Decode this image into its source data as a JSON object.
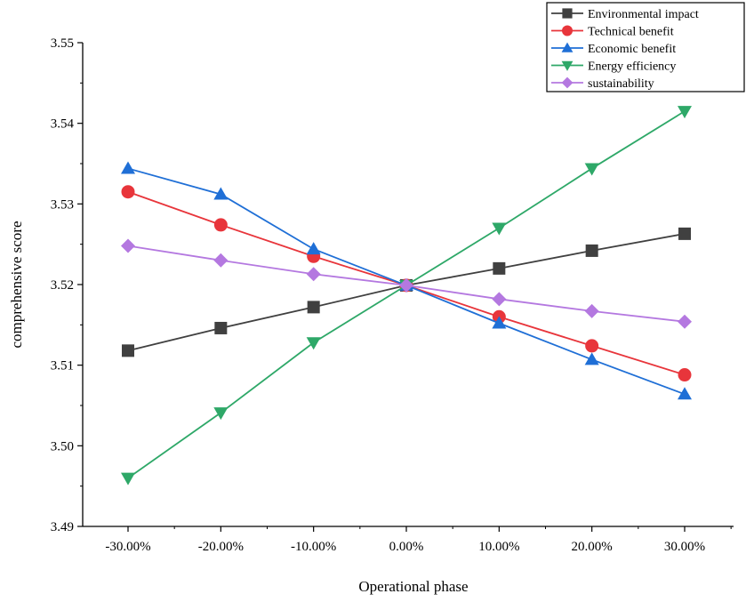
{
  "chart_data": {
    "type": "line",
    "xlabel": "Operational phase",
    "ylabel": "comprehensive score",
    "categories": [
      "-30.00%",
      "-20.00%",
      "-10.00%",
      "0.00%",
      "10.00%",
      "20.00%",
      "30.00%"
    ],
    "yticks": [
      "3.49",
      "3.50",
      "3.51",
      "3.52",
      "3.53",
      "3.54",
      "3.55"
    ],
    "ylim": [
      3.49,
      3.55
    ],
    "grid": false,
    "legend_position": "top-right",
    "series": [
      {
        "name": "Environmental impact",
        "color": "#404040",
        "marker": "square",
        "values": [
          3.5118,
          3.5146,
          3.5172,
          3.5199,
          3.522,
          3.5242,
          3.5263
        ]
      },
      {
        "name": "Technical benefit",
        "color": "#e8353b",
        "marker": "circle",
        "values": [
          3.5315,
          3.5274,
          3.5235,
          3.5199,
          3.516,
          3.5124,
          3.5088
        ]
      },
      {
        "name": "Economic benefit",
        "color": "#1f6fd6",
        "marker": "triangle-up",
        "values": [
          3.5344,
          3.5312,
          3.5244,
          3.5199,
          3.5152,
          3.5107,
          3.5064
        ]
      },
      {
        "name": "Energy efficiency",
        "color": "#2ea868",
        "marker": "triangle-down",
        "values": [
          3.496,
          3.5041,
          3.5128,
          3.5199,
          3.527,
          3.5344,
          3.5415
        ]
      },
      {
        "name": "sustainability",
        "color": "#b478e0",
        "marker": "diamond",
        "values": [
          3.5248,
          3.523,
          3.5213,
          3.5199,
          3.5182,
          3.5167,
          3.5154
        ]
      }
    ]
  }
}
